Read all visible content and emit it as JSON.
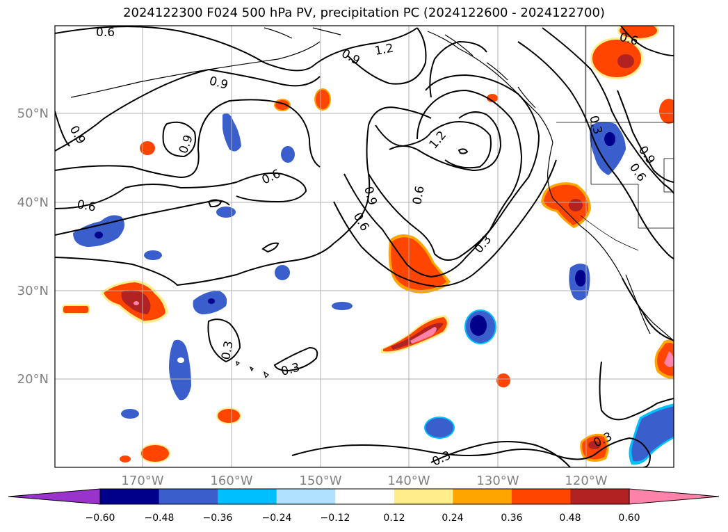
{
  "title": "2024122300 F024 500 hPa PV, precipitation PC (2024122600 - 2024122700)",
  "map": {
    "lat_ticks": [
      "50°N",
      "40°N",
      "30°N",
      "20°N"
    ],
    "lon_ticks": [
      "170°W",
      "160°W",
      "150°W",
      "140°W",
      "130°W",
      "120°W"
    ],
    "gridlines": true,
    "pv_contour_levels": [
      "0.3",
      "0.6",
      "0.9",
      "1.2"
    ],
    "contour_labels": [
      "0.6",
      "0.9",
      "1.2",
      "0.9",
      "0.6",
      "0.9",
      "0.9",
      "0.6",
      "0.6",
      "0.9",
      "0.6",
      "1.2",
      "0.6",
      "0.3",
      "0.3",
      "0.3",
      "0.3",
      "0.3",
      "0.9",
      "0.6",
      "0.3"
    ]
  },
  "colorbar": {
    "ticks": [
      "−0.60",
      "−0.48",
      "−0.36",
      "−0.24",
      "−0.12",
      "0.12",
      "0.24",
      "0.36",
      "0.48",
      "0.60"
    ],
    "colors": [
      "#9933cc",
      "#00008b",
      "#3a5fcd",
      "#00bfff",
      "#b0e2ff",
      "#ffffff",
      "#ffec8b",
      "#ffa500",
      "#ff4500",
      "#b22222",
      "#ff82ab"
    ],
    "extend": "both"
  }
}
